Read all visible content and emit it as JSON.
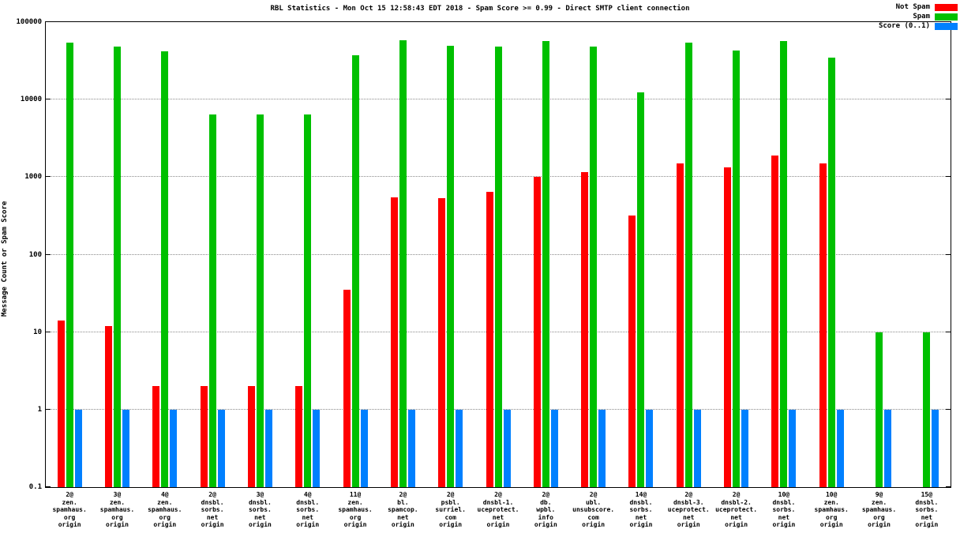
{
  "title": "RBL Statistics - Mon Oct 15 12:58:43 EDT 2018 - Spam Score >= 0.99 - Direct SMTP client connection",
  "ylabel": "Message Count or Spam Score",
  "legend": {
    "position": "top-right",
    "items": [
      {
        "label": "Not Spam",
        "color": "#ff0000"
      },
      {
        "label": "Spam",
        "color": "#00c000"
      },
      {
        "label": "Score (0..1)",
        "color": "#0080ff"
      }
    ]
  },
  "chart_data": {
    "type": "bar",
    "yscale": "log",
    "ylim": [
      0.1,
      100000
    ],
    "grid": true,
    "ytick_labels": [
      "0.1",
      "1",
      "10",
      "100",
      "1000",
      "10000",
      "100000"
    ],
    "categories": [
      [
        "2@",
        "zen.",
        "spamhaus.",
        "org",
        "origin"
      ],
      [
        "3@",
        "zen.",
        "spamhaus.",
        "org",
        "origin"
      ],
      [
        "4@",
        "zen.",
        "spamhaus.",
        "org",
        "origin"
      ],
      [
        "2@",
        "dnsbl.",
        "sorbs.",
        "net",
        "origin"
      ],
      [
        "3@",
        "dnsbl.",
        "sorbs.",
        "net",
        "origin"
      ],
      [
        "4@",
        "dnsbl.",
        "sorbs.",
        "net",
        "origin"
      ],
      [
        "11@",
        "zen.",
        "spamhaus.",
        "org",
        "origin"
      ],
      [
        "2@",
        "bl.",
        "spamcop.",
        "net",
        "origin"
      ],
      [
        "2@",
        "psbl.",
        "surriel.",
        "com",
        "origin"
      ],
      [
        "2@",
        "dnsbl-1.",
        "uceprotect.",
        "net",
        "origin"
      ],
      [
        "2@",
        "db.",
        "wpbl.",
        "info",
        "origin"
      ],
      [
        "2@",
        "ubl.",
        "unsubscore.",
        "com",
        "origin"
      ],
      [
        "14@",
        "dnsbl.",
        "sorbs.",
        "net",
        "origin"
      ],
      [
        "2@",
        "dnsbl-3.",
        "uceprotect.",
        "net",
        "origin"
      ],
      [
        "2@",
        "dnsbl-2.",
        "uceprotect.",
        "net",
        "origin"
      ],
      [
        "10@",
        "dnsbl.",
        "sorbs.",
        "net",
        "origin"
      ],
      [
        "10@",
        "zen.",
        "spamhaus.",
        "org",
        "origin"
      ],
      [
        "9@",
        "zen.",
        "spamhaus.",
        "org",
        "origin"
      ],
      [
        "15@",
        "dnsbl.",
        "sorbs.",
        "net",
        "origin"
      ]
    ],
    "series": [
      {
        "name": "Not Spam",
        "color": "#ff0000",
        "values": [
          14,
          12,
          2,
          2,
          2,
          2,
          35,
          550,
          530,
          650,
          1000,
          1150,
          320,
          1500,
          1350,
          1900,
          1500,
          0,
          0
        ]
      },
      {
        "name": "Spam",
        "color": "#00c000",
        "values": [
          55000,
          48000,
          42000,
          6500,
          6500,
          6500,
          37000,
          58000,
          50000,
          48000,
          57000,
          48000,
          12500,
          55000,
          43000,
          57000,
          35000,
          10,
          10
        ]
      },
      {
        "name": "Score (0..1)",
        "color": "#0080ff",
        "values": [
          1,
          1,
          1,
          1,
          1,
          1,
          1,
          1,
          1,
          1,
          1,
          1,
          1,
          1,
          1,
          1,
          1,
          1,
          1
        ]
      }
    ]
  }
}
